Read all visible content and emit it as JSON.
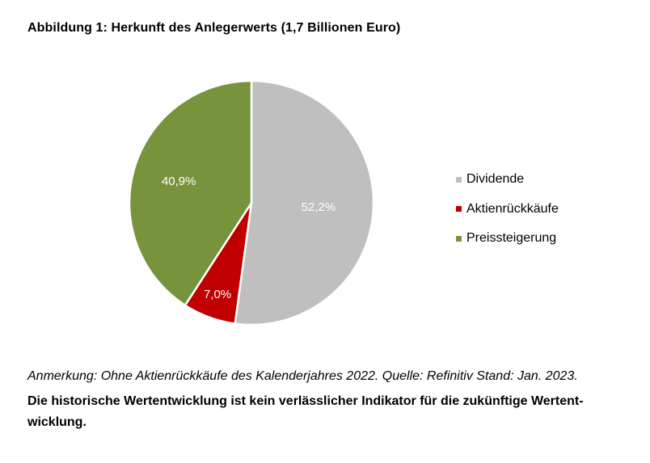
{
  "title": "Abbildung 1: Herkunft des Anlegerwerts (1,7 Billionen Euro)",
  "chart_data": {
    "type": "pie",
    "title": "Abbildung 1: Herkunft des Anlegerwerts (1,7 Billionen Euro)",
    "slices": [
      {
        "name": "Dividende",
        "value": 52.2,
        "label": "52,2%",
        "color": "#bfbfbf"
      },
      {
        "name": "Aktienrückkäufe",
        "value": 7.0,
        "label": "7,0%",
        "color": "#c00000"
      },
      {
        "name": "Preissteigerung",
        "value": 40.9,
        "label": "40,9%",
        "color": "#77933c"
      }
    ],
    "start": "12 o'clock",
    "direction": "clockwise",
    "legend_position": "right"
  },
  "legend": [
    {
      "label": "Dividende",
      "color": "#bfbfbf"
    },
    {
      "label": "Aktienrückkäufe",
      "color": "#c00000"
    },
    {
      "label": "Preissteigerung",
      "color": "#77933c"
    }
  ],
  "note": "Anmerkung: Ohne Aktienrückkäufe des Kalenderjahres 2022. Quelle: Refinitiv Stand: Jan. 2023.",
  "disclaimer": "Die historische Wertentwicklung ist kein verlässlicher Indikator für die zukünftige Wertent-wicklung."
}
